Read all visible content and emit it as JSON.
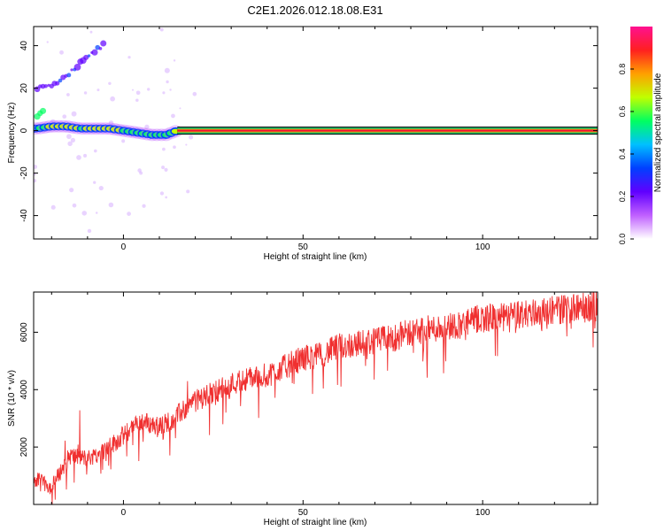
{
  "title": "C2E1.2026.012.18.08.E31",
  "colors": {
    "snr_line": "#f03030",
    "axis": "#000000",
    "background": "#ffffff",
    "spectral_line": "#e8103a",
    "spectral_halo": "#00c070"
  },
  "chart_data": [
    {
      "type": "heatmap",
      "name": "spectrogram",
      "xlabel": "Height of straight line (km)",
      "ylabel": "Frequency (Hz)",
      "xlim": [
        -25,
        132
      ],
      "ylim": [
        -51,
        49
      ],
      "xticks": [
        0,
        50,
        100
      ],
      "yticks": [
        -40,
        -20,
        0,
        20,
        40
      ],
      "colorbar": {
        "label": "Normalized spectral amplitude",
        "range": [
          0,
          1
        ],
        "ticks": [
          "0.0",
          "0.2",
          "0.4",
          "0.6",
          "0.8"
        ],
        "tick_values": [
          0.0,
          0.2,
          0.4,
          0.6,
          0.8
        ],
        "colormap": [
          "#ffffff",
          "#c060ff",
          "#6000ff",
          "#0040ff",
          "#00c0ff",
          "#00ff60",
          "#c0ff00",
          "#ffa000",
          "#ff2020",
          "#ff1090"
        ]
      },
      "ridge": {
        "description": "dominant spectral line",
        "x": [
          -24,
          -20,
          -16,
          -12,
          -8,
          -4,
          0,
          4,
          8,
          12,
          15,
          20,
          40,
          60,
          80,
          100,
          120,
          131
        ],
        "y": [
          1,
          2,
          2,
          1,
          1,
          1,
          0,
          -1,
          -2,
          -2,
          0,
          0,
          0,
          0,
          0,
          0,
          0,
          0
        ],
        "amplitude": [
          0.55,
          0.75,
          0.8,
          0.7,
          0.75,
          0.8,
          0.7,
          0.6,
          0.65,
          0.6,
          0.85,
          0.9,
          0.9,
          0.9,
          0.9,
          0.9,
          0.9,
          0.9
        ]
      },
      "secondary_features": [
        {
          "x": [
            -24,
            -20,
            -16,
            -13,
            -9,
            -5
          ],
          "y": [
            20,
            21,
            25,
            30,
            36,
            41
          ],
          "amplitude": 0.2
        },
        {
          "x": [
            -24,
            -22
          ],
          "y": [
            7,
            9
          ],
          "amplitude": 0.5
        }
      ]
    },
    {
      "type": "line",
      "name": "snr",
      "xlabel": "Height of straight line (km)",
      "ylabel": "SNR (10 * v/v)",
      "xlim": [
        -25,
        132
      ],
      "ylim": [
        0,
        7400
      ],
      "xticks": [
        0,
        50,
        100
      ],
      "yticks": [
        2000,
        4000,
        6000
      ],
      "series": [
        {
          "name": "SNR",
          "x": [
            -25,
            -20,
            -15,
            -10,
            -5,
            0,
            5,
            10,
            15,
            20,
            25,
            30,
            35,
            40,
            45,
            50,
            55,
            60,
            65,
            70,
            75,
            80,
            85,
            90,
            95,
            100,
            105,
            110,
            115,
            120,
            125,
            131
          ],
          "values": [
            900,
            600,
            1700,
            1600,
            1900,
            2400,
            2900,
            2700,
            3100,
            3600,
            3900,
            4200,
            4400,
            4500,
            4800,
            5100,
            5200,
            5500,
            5600,
            5700,
            5800,
            6000,
            6100,
            6200,
            6300,
            6500,
            6500,
            6600,
            6700,
            6800,
            6800,
            6900
          ]
        }
      ]
    }
  ]
}
